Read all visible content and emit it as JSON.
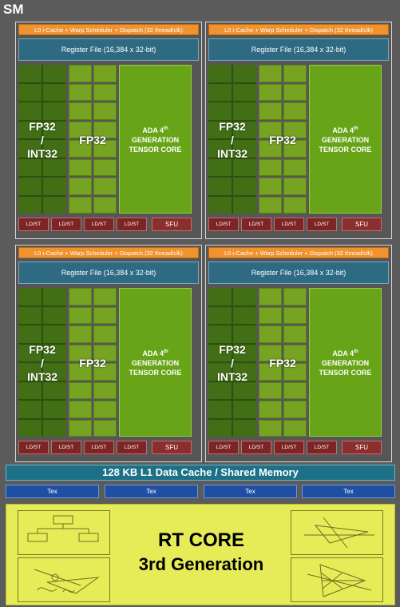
{
  "sm_title": "SM",
  "quadrant": {
    "l0_cache": "L0 i-Cache + Warp Scheduler + Dispatch (32 thread/clk)",
    "register_file": "Register File (16,384 x 32-bit)",
    "fp32_int32": [
      "FP32",
      "/",
      "INT32"
    ],
    "fp32": "FP32",
    "tensor_core": [
      "ADA 4",
      "th",
      "GENERATION",
      "TENSOR CORE"
    ],
    "ldst": "LD/ST",
    "sfu": "SFU"
  },
  "l1_cache": "128 KB L1 Data Cache / Shared Memory",
  "tex_units": [
    "Tex",
    "Tex",
    "Tex",
    "Tex"
  ],
  "rt_core": [
    "RT CORE",
    "3rd Generation"
  ],
  "colors": {
    "l0": "#f0922e",
    "register_file": "#2e6b83",
    "fp32_int32": "#426e16",
    "fp32": "#77a323",
    "tensor": "#67a417",
    "ldst": "#7d2424",
    "l1": "#1d7186",
    "tex": "#1e4fa3",
    "rt_core": "#e6ec58"
  }
}
